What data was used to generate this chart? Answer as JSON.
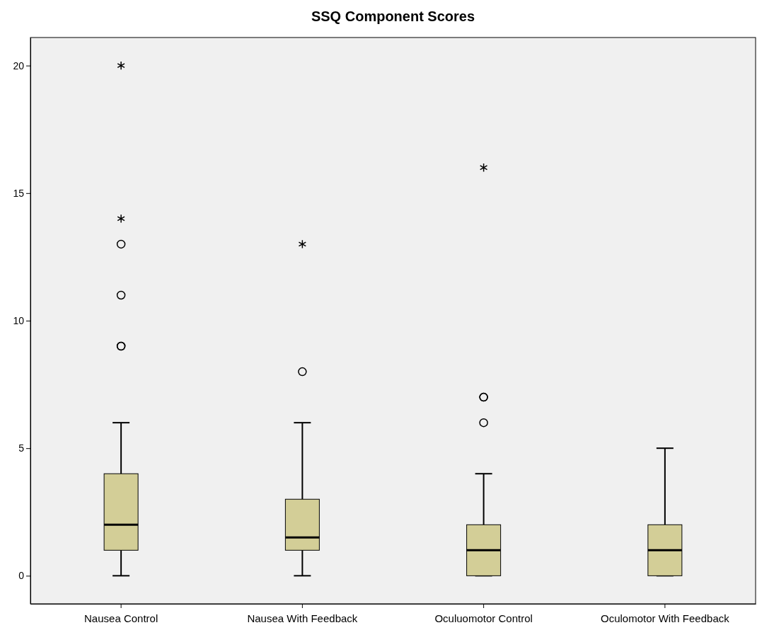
{
  "chart_data": {
    "type": "box",
    "title": "SSQ Component Scores",
    "categories": [
      "Nausea Control",
      "Nausea With Feedback",
      "Oculuomotor Control",
      "Oculomotor With Feedback"
    ],
    "boxes": [
      {
        "low": 0,
        "q1": 1,
        "median": 2,
        "q3": 4,
        "high": 6,
        "outliers": [
          9,
          9,
          11,
          13,
          14,
          20
        ]
      },
      {
        "low": 0,
        "q1": 1,
        "median": 1.5,
        "q3": 3,
        "high": 6,
        "outliers": [
          8,
          13
        ]
      },
      {
        "low": 0,
        "q1": 0,
        "median": 1,
        "q3": 2,
        "high": 4,
        "outliers": [
          6,
          7,
          7,
          16
        ]
      },
      {
        "low": 0,
        "q1": 0,
        "median": 1,
        "q3": 2,
        "high": 5
      }
    ],
    "color": "#d3ce97",
    "ylim": [
      -1.1,
      21.1
    ],
    "yticks": [
      0,
      5,
      10,
      15,
      20
    ],
    "grid": false
  }
}
